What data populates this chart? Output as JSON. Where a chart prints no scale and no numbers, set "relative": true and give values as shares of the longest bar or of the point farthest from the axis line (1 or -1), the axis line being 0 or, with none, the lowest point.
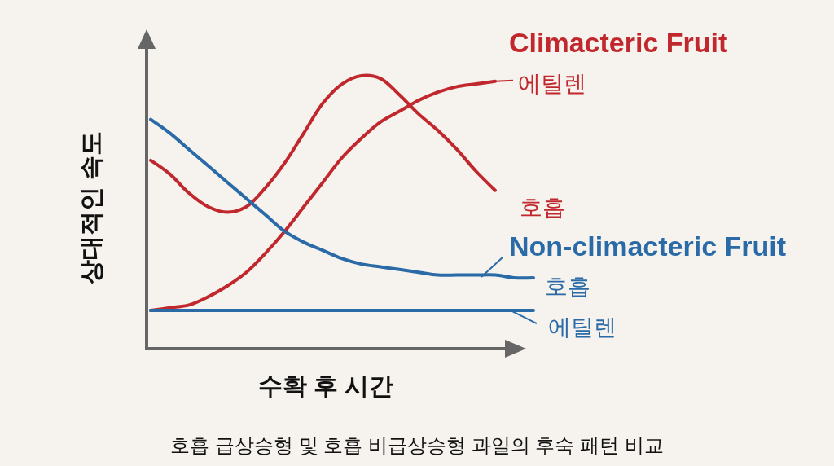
{
  "chart_data": {
    "type": "line",
    "relative": true,
    "xlabel": "수확 후 시간",
    "ylabel": "상대적인 속도",
    "categories": [
      null,
      null,
      null,
      null,
      null,
      null,
      null,
      null,
      null,
      null,
      null,
      null,
      null,
      null,
      null,
      null,
      null,
      null,
      null,
      null,
      null
    ],
    "series": [
      {
        "name": "호흡",
        "color": "#c0282d",
        "values": [
          0.69,
          0.64,
          0.57,
          0.52,
          0.5,
          0.52,
          0.59,
          0.68,
          0.79,
          0.9,
          0.97,
          1,
          0.99,
          0.93,
          0.86,
          0.8,
          0.73,
          0.65,
          0.58,
          null,
          null
        ]
      },
      {
        "name": "에틸렌",
        "color": "#c0282d",
        "values": [
          0.14,
          0.15,
          0.16,
          0.19,
          0.23,
          0.28,
          0.35,
          0.43,
          0.52,
          0.61,
          0.7,
          0.77,
          0.83,
          0.87,
          0.91,
          0.94,
          0.96,
          0.97,
          0.98,
          null,
          null
        ]
      },
      {
        "name": "호흡",
        "color": "#2a6aa6",
        "values": [
          0.84,
          0.79,
          0.73,
          0.67,
          0.61,
          0.55,
          0.49,
          0.43,
          0.39,
          0.36,
          0.33,
          0.31,
          0.3,
          0.29,
          0.28,
          0.27,
          0.27,
          0.27,
          0.27,
          0.26,
          0.26
        ]
      },
      {
        "name": "에틸렌",
        "color": "#2a6aa6",
        "values": [
          0.14,
          0.14,
          0.14,
          0.14,
          0.14,
          0.14,
          0.14,
          0.14,
          0.14,
          0.14,
          0.14,
          0.14,
          0.14,
          0.14,
          0.14,
          0.14,
          0.14,
          0.14,
          0.14,
          0.14,
          0.14
        ]
      }
    ],
    "annotations": [
      "Climacteric Fruit",
      "Non-climacteric Fruit",
      "호흡 급상승형 및 호흡 비급상승형 과일의 후숙 패턴 비교"
    ],
    "legend": "right",
    "marker": "none",
    "line_style": "solid"
  }
}
